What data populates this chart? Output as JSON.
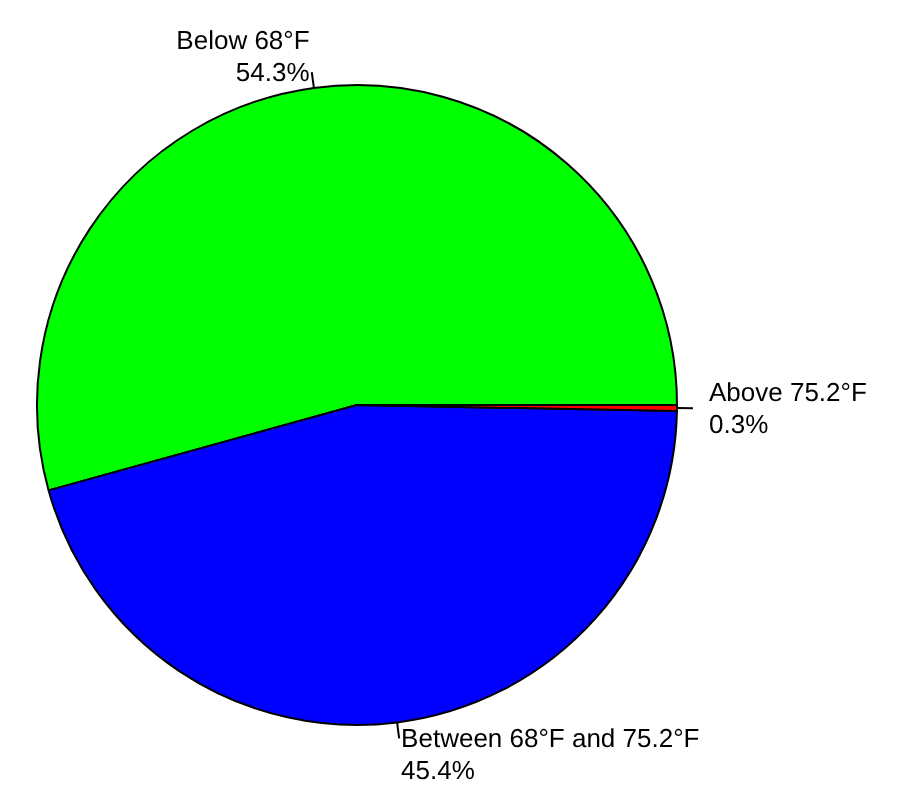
{
  "chart_data": {
    "type": "pie",
    "categories": [
      "Below 68°F",
      "Between 68°F and 75.2°F",
      "Above 75.2°F"
    ],
    "values": [
      54.3,
      45.4,
      0.3
    ],
    "value_labels": [
      "54.3%",
      "45.4%",
      "0.3%"
    ],
    "colors": [
      "#00ff00",
      "#0000ff",
      "#ff0000"
    ]
  }
}
